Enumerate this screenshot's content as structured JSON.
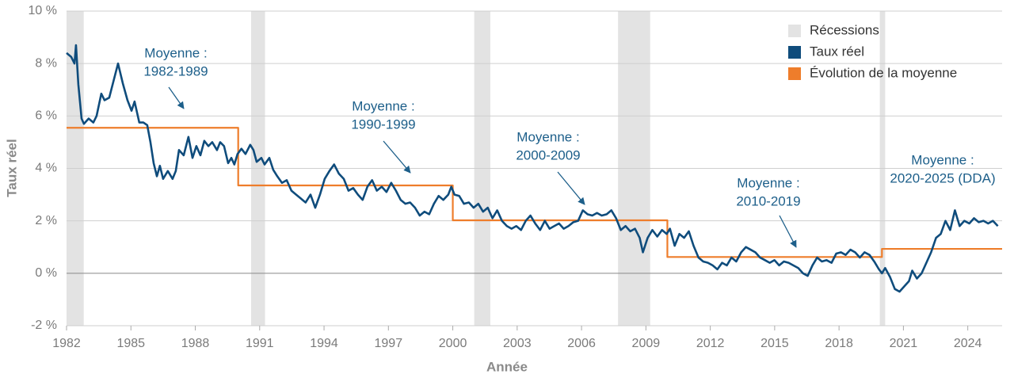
{
  "chart_data": {
    "type": "line",
    "x_label": "Année",
    "y_label": "Taux réel",
    "xlim": [
      1982,
      2025.6
    ],
    "ylim": [
      -2,
      10
    ],
    "xticks": [
      1982,
      1985,
      1988,
      1991,
      1994,
      1997,
      2000,
      2003,
      2006,
      2009,
      2012,
      2015,
      2018,
      2021,
      2024
    ],
    "yticks": [
      {
        "value": -2,
        "label": "-2 %"
      },
      {
        "value": 0,
        "label": "0 %"
      },
      {
        "value": 2,
        "label": "2 %"
      },
      {
        "value": 4,
        "label": "4 %"
      },
      {
        "value": 6,
        "label": "6 %"
      },
      {
        "value": 8,
        "label": "8 %"
      },
      {
        "value": 10,
        "label": "10 %"
      }
    ],
    "grid": true,
    "legend": "upper right",
    "recessions": {
      "name": "Récessions",
      "color": "#e3e3e3",
      "periods": [
        [
          1982,
          1982.8
        ],
        [
          1990.6,
          1991.25
        ],
        [
          2001.0,
          2001.75
        ],
        [
          2007.7,
          2009.2
        ],
        [
          2019.9,
          2020.15
        ]
      ]
    },
    "series": [
      {
        "name": "Taux réel",
        "color": "#0f4c7c",
        "x": [
          1982.0,
          1982.22,
          1982.37,
          1982.44,
          1982.55,
          1982.7,
          1982.81,
          1983.03,
          1983.25,
          1983.4,
          1983.62,
          1983.77,
          1983.99,
          1984.21,
          1984.4,
          1984.62,
          1984.84,
          1985.03,
          1985.17,
          1985.39,
          1985.58,
          1985.76,
          1985.91,
          1986.06,
          1986.21,
          1986.35,
          1986.5,
          1986.72,
          1986.94,
          1987.09,
          1987.24,
          1987.46,
          1987.68,
          1987.87,
          1988.05,
          1988.24,
          1988.42,
          1988.61,
          1988.79,
          1989.01,
          1989.16,
          1989.34,
          1989.53,
          1989.68,
          1989.82,
          1989.97,
          1990.15,
          1990.34,
          1990.56,
          1990.71,
          1990.86,
          1991.08,
          1991.23,
          1991.45,
          1991.63,
          1991.82,
          1992.04,
          1992.26,
          1992.48,
          1992.7,
          1992.92,
          1993.14,
          1993.37,
          1993.59,
          1993.81,
          1994.03,
          1994.25,
          1994.47,
          1994.69,
          1994.92,
          1995.14,
          1995.36,
          1995.58,
          1995.8,
          1996.02,
          1996.24,
          1996.46,
          1996.69,
          1996.91,
          1997.13,
          1997.35,
          1997.57,
          1997.79,
          1998.01,
          1998.24,
          1998.46,
          1998.68,
          1998.9,
          1999.12,
          1999.34,
          1999.56,
          1999.79,
          1999.93,
          2000.08,
          2000.3,
          2000.52,
          2000.75,
          2000.97,
          2001.19,
          2001.41,
          2001.63,
          2001.85,
          2002.07,
          2002.29,
          2002.52,
          2002.74,
          2002.96,
          2003.18,
          2003.4,
          2003.62,
          2003.84,
          2004.07,
          2004.29,
          2004.51,
          2004.73,
          2004.95,
          2005.17,
          2005.39,
          2005.62,
          2005.84,
          2006.06,
          2006.28,
          2006.5,
          2006.72,
          2006.94,
          2007.17,
          2007.39,
          2007.61,
          2007.83,
          2008.05,
          2008.27,
          2008.49,
          2008.71,
          2008.86,
          2009.08,
          2009.3,
          2009.53,
          2009.75,
          2009.97,
          2010.12,
          2010.34,
          2010.56,
          2010.78,
          2011.0,
          2011.22,
          2011.45,
          2011.67,
          2011.89,
          2012.11,
          2012.33,
          2012.55,
          2012.77,
          2012.99,
          2013.21,
          2013.44,
          2013.66,
          2013.88,
          2014.1,
          2014.32,
          2014.55,
          2014.77,
          2014.99,
          2015.21,
          2015.43,
          2015.65,
          2015.87,
          2016.1,
          2016.32,
          2016.54,
          2016.76,
          2016.98,
          2017.2,
          2017.42,
          2017.65,
          2017.87,
          2018.09,
          2018.31,
          2018.53,
          2018.75,
          2018.97,
          2019.19,
          2019.42,
          2019.64,
          2019.86,
          2020.0,
          2020.15,
          2020.38,
          2020.6,
          2020.82,
          2021.04,
          2021.26,
          2021.41,
          2021.63,
          2021.85,
          2022.07,
          2022.29,
          2022.52,
          2022.74,
          2022.96,
          2023.18,
          2023.4,
          2023.62,
          2023.84,
          2024.07,
          2024.29,
          2024.51,
          2024.73,
          2024.95,
          2025.17,
          2025.4
        ],
        "values": [
          8.4,
          8.25,
          8.0,
          8.7,
          7.2,
          5.9,
          5.7,
          5.9,
          5.75,
          6.0,
          6.85,
          6.6,
          6.7,
          7.4,
          8.0,
          7.25,
          6.6,
          6.2,
          6.55,
          5.75,
          5.75,
          5.65,
          5.0,
          4.2,
          3.7,
          4.1,
          3.6,
          3.9,
          3.6,
          3.9,
          4.7,
          4.5,
          5.2,
          4.4,
          4.85,
          4.5,
          5.05,
          4.85,
          5.0,
          4.7,
          5.0,
          4.85,
          4.2,
          4.4,
          4.15,
          4.55,
          4.75,
          4.55,
          4.9,
          4.7,
          4.25,
          4.4,
          4.15,
          4.4,
          3.95,
          3.7,
          3.45,
          3.55,
          3.15,
          3.0,
          2.85,
          2.7,
          3.0,
          2.5,
          3.0,
          3.6,
          3.9,
          4.15,
          3.8,
          3.6,
          3.15,
          3.25,
          3.0,
          2.8,
          3.3,
          3.55,
          3.15,
          3.3,
          3.1,
          3.45,
          3.15,
          2.8,
          2.65,
          2.7,
          2.5,
          2.2,
          2.35,
          2.25,
          2.65,
          2.95,
          2.8,
          3.0,
          3.3,
          3.0,
          2.95,
          2.65,
          2.7,
          2.5,
          2.65,
          2.35,
          2.5,
          2.1,
          2.4,
          2.0,
          1.8,
          1.7,
          1.8,
          1.65,
          2.0,
          2.2,
          1.9,
          1.65,
          2.0,
          1.7,
          1.8,
          1.9,
          1.7,
          1.8,
          1.95,
          2.0,
          2.4,
          2.25,
          2.2,
          2.3,
          2.2,
          2.25,
          2.4,
          2.1,
          1.65,
          1.8,
          1.6,
          1.7,
          1.35,
          0.8,
          1.35,
          1.65,
          1.4,
          1.65,
          1.5,
          1.7,
          1.05,
          1.5,
          1.35,
          1.6,
          1.05,
          0.6,
          0.45,
          0.4,
          0.3,
          0.15,
          0.4,
          0.3,
          0.6,
          0.45,
          0.8,
          1.0,
          0.9,
          0.8,
          0.6,
          0.5,
          0.4,
          0.5,
          0.3,
          0.45,
          0.4,
          0.3,
          0.2,
          0.0,
          -0.1,
          0.3,
          0.6,
          0.45,
          0.5,
          0.4,
          0.75,
          0.8,
          0.7,
          0.9,
          0.8,
          0.6,
          0.8,
          0.7,
          0.45,
          0.15,
          0.0,
          0.2,
          -0.15,
          -0.6,
          -0.7,
          -0.5,
          -0.3,
          0.1,
          -0.2,
          0.0,
          0.4,
          0.8,
          1.35,
          1.5,
          2.0,
          1.65,
          2.4,
          1.8,
          2.0,
          1.9,
          2.1,
          1.95,
          2.0,
          1.9,
          2.0,
          1.8
        ]
      },
      {
        "name": "Évolution de la moyenne",
        "color": "#ee7d2b",
        "x": [
          1982,
          1990,
          1990,
          2000,
          2000,
          2010,
          2010,
          2020,
          2020,
          2025.6
        ],
        "values": [
          5.55,
          5.55,
          3.35,
          3.35,
          2.02,
          2.02,
          0.62,
          0.62,
          0.93,
          0.93
        ]
      }
    ],
    "annotations": [
      {
        "lines": [
          "Moyenne :",
          "1982-1989"
        ]
      },
      {
        "lines": [
          "Moyenne :",
          "1990-1999"
        ]
      },
      {
        "lines": [
          "Moyenne :",
          "2000-2009"
        ]
      },
      {
        "lines": [
          "Moyenne :",
          "2010-2019"
        ]
      },
      {
        "lines": [
          "Moyenne :",
          "2020-2025 (DDA)"
        ]
      }
    ]
  }
}
